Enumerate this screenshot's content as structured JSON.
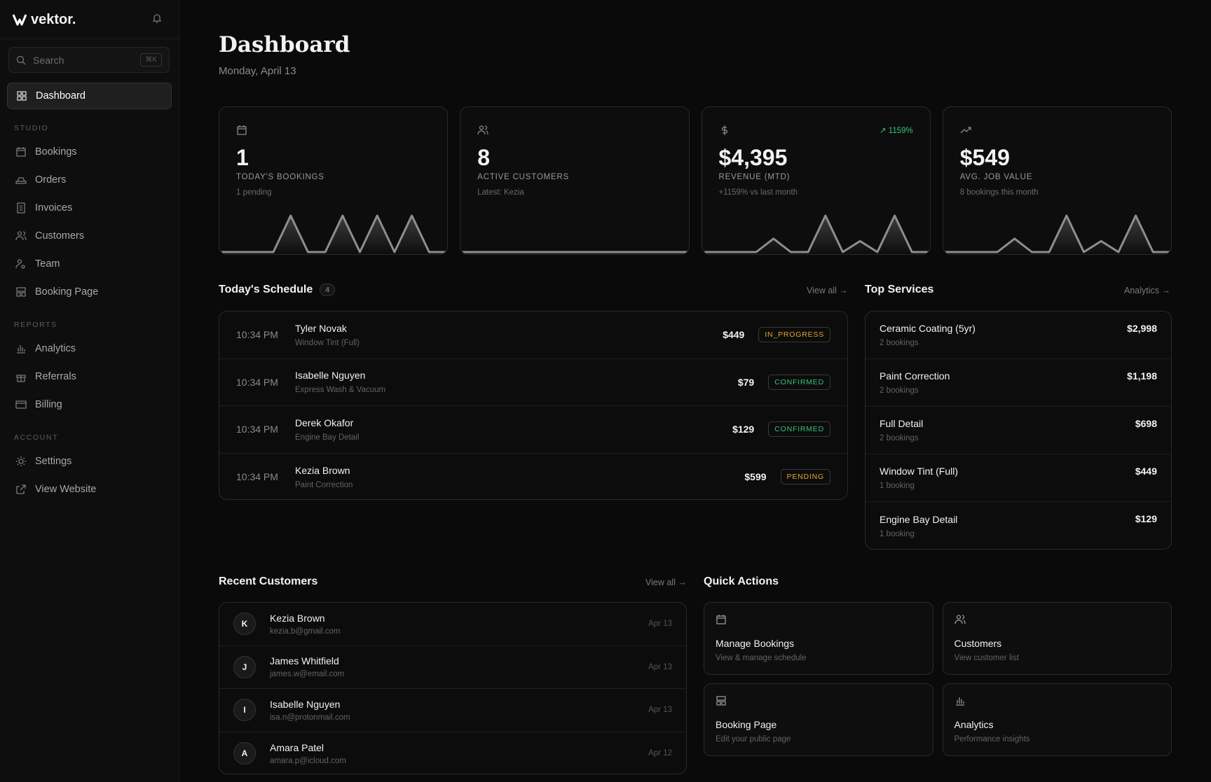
{
  "sidebar": {
    "brand": "vektor.",
    "search": "Search",
    "shortcut": "⌘K",
    "sections": [
      {
        "items": [
          "Dashboard"
        ]
      },
      {
        "title": "STUDIO",
        "items": [
          "Bookings",
          "Orders",
          "Invoices",
          "Customers",
          "Team",
          "Booking Page"
        ]
      },
      {
        "title": "REPORTS",
        "items": [
          "Analytics",
          "Referrals",
          "Billing"
        ]
      },
      {
        "title": "ACCOUNT",
        "items": [
          "Settings",
          "View Website"
        ]
      }
    ]
  },
  "header": {
    "title": "Dashboard",
    "date": "Monday, April 13"
  },
  "stats": [
    {
      "value": "1",
      "label": "TODAY'S BOOKINGS",
      "sub": "1 pending",
      "spark": [
        0,
        0,
        0,
        0,
        1,
        0,
        0,
        1,
        0,
        1,
        0,
        1,
        0,
        0
      ]
    },
    {
      "value": "8",
      "label": "ACTIVE CUSTOMERS",
      "sub": "Latest: Kezia",
      "spark": [
        0,
        0,
        0,
        0,
        0,
        0,
        0,
        0,
        0,
        0,
        0,
        0,
        0,
        0
      ]
    },
    {
      "value": "$4,395",
      "label": "REVENUE (MTD)",
      "sub": "+1159% vs last month",
      "badge": "↗ 1159%",
      "spark": [
        0,
        0,
        0,
        0,
        220,
        0,
        0,
        600,
        0,
        180,
        0,
        600,
        0,
        0
      ]
    },
    {
      "value": "$549",
      "label": "AVG. JOB VALUE",
      "sub": "8 bookings this month",
      "spark": [
        0,
        0,
        0,
        0,
        220,
        0,
        0,
        600,
        0,
        180,
        0,
        600,
        0,
        0
      ]
    }
  ],
  "schedule": {
    "title": "Today's Schedule",
    "count": "4",
    "link": "View all →",
    "rows": [
      {
        "time": "10:34 PM",
        "name": "Tyler Novak",
        "service": "Window Tint (Full)",
        "price": "$449",
        "status": "IN_PROGRESS"
      },
      {
        "time": "10:34 PM",
        "name": "Isabelle Nguyen",
        "service": "Express Wash & Vacuum",
        "price": "$79",
        "status": "CONFIRMED"
      },
      {
        "time": "10:34 PM",
        "name": "Derek Okafor",
        "service": "Engine Bay Detail",
        "price": "$129",
        "status": "CONFIRMED"
      },
      {
        "time": "10:34 PM",
        "name": "Kezia Brown",
        "service": "Paint Correction",
        "price": "$599",
        "status": "PENDING"
      }
    ]
  },
  "services": {
    "title": "Top Services",
    "link": "Analytics →",
    "rows": [
      {
        "name": "Ceramic Coating (5yr)",
        "count": "2 bookings",
        "price": "$2,998"
      },
      {
        "name": "Paint Correction",
        "count": "2 bookings",
        "price": "$1,198"
      },
      {
        "name": "Full Detail",
        "count": "2 bookings",
        "price": "$698"
      },
      {
        "name": "Window Tint (Full)",
        "count": "1 booking",
        "price": "$449"
      },
      {
        "name": "Engine Bay Detail",
        "count": "1 booking",
        "price": "$129"
      }
    ]
  },
  "customers": {
    "title": "Recent Customers",
    "link": "View all →",
    "rows": [
      {
        "initial": "K",
        "name": "Kezia Brown",
        "email": "kezia.b@gmail.com",
        "date": "Apr 13"
      },
      {
        "initial": "J",
        "name": "James Whitfield",
        "email": "james.w@email.com",
        "date": "Apr 13"
      },
      {
        "initial": "I",
        "name": "Isabelle Nguyen",
        "email": "isa.n@protonmail.com",
        "date": "Apr 13"
      },
      {
        "initial": "A",
        "name": "Amara Patel",
        "email": "amara.p@icloud.com",
        "date": "Apr 12"
      }
    ]
  },
  "actions": {
    "title": "Quick Actions",
    "items": [
      {
        "title": "Manage Bookings",
        "sub": "View & manage schedule"
      },
      {
        "title": "Customers",
        "sub": "View customer list"
      },
      {
        "title": "Booking Page",
        "sub": "Edit your public page"
      },
      {
        "title": "Analytics",
        "sub": "Performance insights"
      }
    ]
  }
}
